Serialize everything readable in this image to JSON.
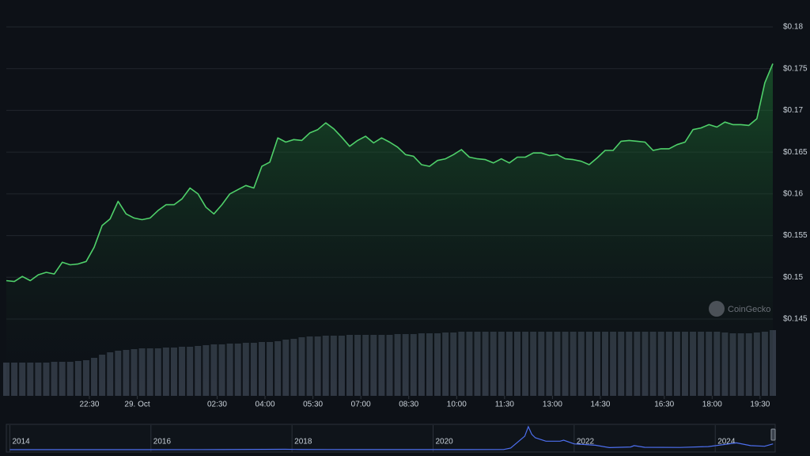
{
  "chart_data": [
    {
      "type": "line",
      "x": [
        -4.1,
        -3.85,
        -3.6,
        -3.35,
        -3.1,
        -2.85,
        -2.6,
        -2.35,
        -2.1,
        -1.85,
        -1.6,
        -1.35,
        -1.1,
        -0.85,
        -0.6,
        -0.35,
        -0.1,
        0.15,
        0.4,
        0.65,
        0.9,
        1.15,
        1.4,
        1.65,
        1.9,
        2.15,
        2.4,
        2.65,
        2.9,
        3.15,
        3.4,
        3.65,
        3.9,
        4.15,
        4.4,
        4.65,
        4.9,
        5.15,
        5.4,
        5.65,
        5.9,
        6.15,
        6.4,
        6.65,
        6.9,
        7.15,
        7.4,
        7.65,
        7.9,
        8.15,
        8.4,
        8.65,
        8.9,
        9.15,
        9.4,
        9.65,
        9.9,
        10.15,
        10.4,
        10.65,
        10.9,
        11.15,
        11.4,
        11.65,
        11.9,
        12.15,
        12.4,
        12.65,
        12.9,
        13.15,
        13.4,
        13.65,
        13.9,
        14.15,
        14.4,
        14.65,
        14.9,
        15.15,
        15.4,
        15.65,
        15.9,
        16.15,
        16.4,
        16.65,
        16.9,
        17.15,
        17.4,
        17.65,
        17.9,
        18.15,
        18.4,
        18.65,
        18.9,
        19.15,
        19.4,
        19.65,
        19.9
      ],
      "series": [
        {
          "type": "line",
          "color": "#4fd06a",
          "values": [
            0.1496,
            0.1495,
            0.1501,
            0.1496,
            0.1503,
            0.1506,
            0.1504,
            0.1518,
            0.1515,
            0.1516,
            0.1519,
            0.1536,
            0.1562,
            0.157,
            0.1591,
            0.1576,
            0.1571,
            0.1569,
            0.1571,
            0.158,
            0.1587,
            0.1587,
            0.1594,
            0.1607,
            0.16,
            0.1584,
            0.1576,
            0.1587,
            0.16,
            0.1605,
            0.161,
            0.1607,
            0.1633,
            0.1638,
            0.1667,
            0.1662,
            0.1665,
            0.1664,
            0.1673,
            0.1677,
            0.1685,
            0.1678,
            0.1668,
            0.1657,
            0.1664,
            0.1669,
            0.1661,
            0.1667,
            0.1662,
            0.1656,
            0.1647,
            0.1645,
            0.1635,
            0.1633,
            0.164,
            0.1642,
            0.1647,
            0.1653,
            0.1644,
            0.1642,
            0.1641,
            0.1637,
            0.1642,
            0.1637,
            0.1644,
            0.1644,
            0.1649,
            0.1649,
            0.1646,
            0.1647,
            0.1642,
            0.1641,
            0.1639,
            0.1635,
            0.1643,
            0.1652,
            0.1652,
            0.1663,
            0.1664,
            0.1663,
            0.1662,
            0.1652,
            0.1654,
            0.1654,
            0.1659,
            0.1662,
            0.1677,
            0.1679,
            0.1683,
            0.168,
            0.1686,
            0.1683,
            0.1683,
            0.1682,
            0.169,
            0.1733,
            0.1756
          ]
        },
        {
          "type": "bar",
          "color": "#323a46",
          "values": [
            42,
            42,
            42,
            42,
            42,
            42,
            43,
            43,
            43,
            44,
            45,
            48,
            52,
            55,
            57,
            58,
            59,
            60,
            60,
            60,
            61,
            61,
            62,
            62,
            63,
            64,
            65,
            65,
            66,
            66,
            67,
            67,
            68,
            68,
            69,
            71,
            72,
            74,
            75,
            75,
            76,
            76,
            76,
            77,
            77,
            77,
            77,
            77,
            77,
            78,
            78,
            78,
            79,
            79,
            79,
            80,
            80,
            81,
            81,
            81,
            81,
            81,
            81,
            81,
            81,
            81,
            81,
            81,
            81,
            81,
            81,
            81,
            81,
            81,
            81,
            81,
            81,
            81,
            81,
            81,
            81,
            81,
            81,
            81,
            81,
            81,
            81,
            81,
            81,
            81,
            80,
            79,
            79,
            79,
            80,
            81,
            83
          ]
        }
      ],
      "xlim": [
        -4.1,
        19.9
      ],
      "xticks": [
        {
          "value": -1.5,
          "label": "22:30"
        },
        {
          "value": 0,
          "label": "29. Oct"
        },
        {
          "value": 2.5,
          "label": "02:30"
        },
        {
          "value": 4,
          "label": "04:00"
        },
        {
          "value": 5.5,
          "label": "05:30"
        },
        {
          "value": 7,
          "label": "07:00"
        },
        {
          "value": 8.5,
          "label": "08:30"
        },
        {
          "value": 10,
          "label": "10:00"
        },
        {
          "value": 11.5,
          "label": "11:30"
        },
        {
          "value": 13,
          "label": "13:00"
        },
        {
          "value": 14.5,
          "label": "14:30"
        },
        {
          "value": 16.5,
          "label": "16:30"
        },
        {
          "value": 18,
          "label": "18:00"
        },
        {
          "value": 19.5,
          "label": "19:30"
        }
      ],
      "ylim": [
        0.145,
        0.18
      ],
      "yticks": [
        {
          "value": 0.145,
          "label": "$0.145"
        },
        {
          "value": 0.15,
          "label": "$0.15"
        },
        {
          "value": 0.155,
          "label": "$0.155"
        },
        {
          "value": 0.16,
          "label": "$0.16"
        },
        {
          "value": 0.165,
          "label": "$0.165"
        },
        {
          "value": 0.17,
          "label": "$0.17"
        },
        {
          "value": 0.175,
          "label": "$0.175"
        },
        {
          "value": 0.18,
          "label": "$0.18"
        }
      ],
      "grid": true,
      "annotation": "CoinGecko"
    },
    {
      "type": "navigator",
      "x": [
        2014.0,
        2015.0,
        2016.0,
        2017.0,
        2017.9,
        2018.05,
        2018.5,
        2019.0,
        2019.5,
        2020.0,
        2020.5,
        2021.0,
        2021.1,
        2021.3,
        2021.35,
        2021.4,
        2021.45,
        2021.6,
        2021.8,
        2021.85,
        2022.0,
        2022.3,
        2022.5,
        2022.8,
        2022.85,
        2023.0,
        2023.5,
        2023.9,
        2024.2,
        2024.3,
        2024.5,
        2024.7,
        2024.82
      ],
      "values": [
        0.0005,
        0.0002,
        0.0003,
        0.002,
        0.012,
        0.008,
        0.004,
        0.002,
        0.003,
        0.002,
        0.003,
        0.005,
        0.05,
        0.4,
        0.68,
        0.45,
        0.35,
        0.25,
        0.25,
        0.28,
        0.17,
        0.13,
        0.06,
        0.08,
        0.12,
        0.07,
        0.065,
        0.09,
        0.17,
        0.2,
        0.12,
        0.1,
        0.17
      ],
      "color": "#4d6ff0",
      "xlim": [
        2013.95,
        2024.85
      ],
      "ylim": [
        0,
        0.7
      ],
      "xticks": [
        2014,
        2016,
        2018,
        2020,
        2022,
        2024
      ]
    }
  ]
}
